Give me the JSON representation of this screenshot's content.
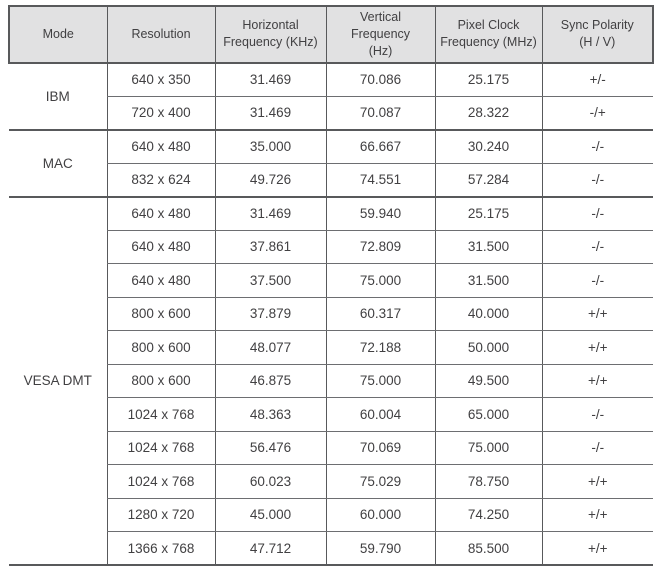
{
  "table": {
    "name": "display-timing-table",
    "columns": [
      "Mode",
      "Resolution",
      "Horizontal\nFrequency (KHz)",
      "Vertical Frequency\n(Hz)",
      "Pixel Clock\nFrequency (MHz)",
      "Sync Polarity\n(H / V)"
    ],
    "groups": [
      {
        "mode": "IBM",
        "rows": [
          [
            "640 x 350",
            "31.469",
            "70.086",
            "25.175",
            "+/-"
          ],
          [
            "720 x 400",
            "31.469",
            "70.087",
            "28.322",
            "-/+"
          ]
        ]
      },
      {
        "mode": "MAC",
        "rows": [
          [
            "640 x 480",
            "35.000",
            "66.667",
            "30.240",
            "-/-"
          ],
          [
            "832 x 624",
            "49.726",
            "74.551",
            "57.284",
            "-/-"
          ]
        ]
      },
      {
        "mode": "VESA DMT",
        "rows": [
          [
            "640 x 480",
            "31.469",
            "59.940",
            "25.175",
            "-/-"
          ],
          [
            "640 x 480",
            "37.861",
            "72.809",
            "31.500",
            "-/-"
          ],
          [
            "640 x 480",
            "37.500",
            "75.000",
            "31.500",
            "-/-"
          ],
          [
            "800 x 600",
            "37.879",
            "60.317",
            "40.000",
            "+/+"
          ],
          [
            "800 x 600",
            "48.077",
            "72.188",
            "50.000",
            "+/+"
          ],
          [
            "800 x 600",
            "46.875",
            "75.000",
            "49.500",
            "+/+"
          ],
          [
            "1024 x 768",
            "48.363",
            "60.004",
            "65.000",
            "-/-"
          ],
          [
            "1024 x 768",
            "56.476",
            "70.069",
            "75.000",
            "-/-"
          ],
          [
            "1024 x 768",
            "60.023",
            "75.029",
            "78.750",
            "+/+"
          ],
          [
            "1280 x 720",
            "45.000",
            "60.000",
            "74.250",
            "+/+"
          ],
          [
            "1366 x 768",
            "47.712",
            "59.790",
            "85.500",
            "+/+"
          ]
        ]
      }
    ]
  },
  "colors": {
    "header_bg": "#e1e1e2",
    "border_dark": "#58595b",
    "border_light": "#6d6e71",
    "text": "#414042",
    "page_bg": "#ffffff"
  }
}
